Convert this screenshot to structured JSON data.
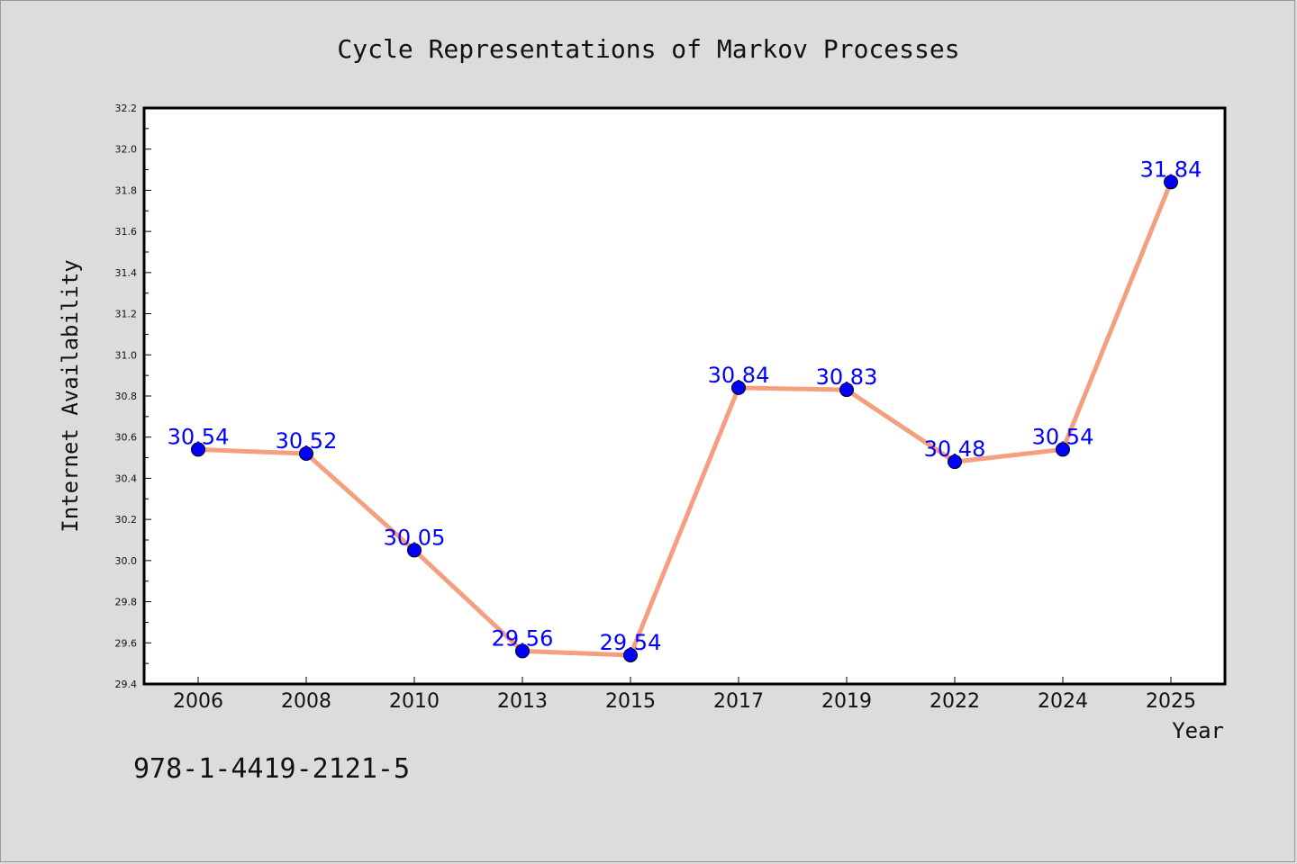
{
  "chart_data": {
    "type": "line",
    "title": "Cycle Representations of Markov Processes",
    "xlabel": "Year",
    "ylabel": "Internet Availability",
    "categories": [
      "2006",
      "2008",
      "2010",
      "2013",
      "2015",
      "2017",
      "2019",
      "2022",
      "2024",
      "2025"
    ],
    "series": [
      {
        "values": [
          30.54,
          30.52,
          30.05,
          29.56,
          29.54,
          30.84,
          30.83,
          30.48,
          30.54,
          31.84
        ],
        "line_color": "#f4a080",
        "marker_color": "#0000ff"
      }
    ],
    "data_labels": [
      "30.54",
      "30.52",
      "30.05",
      "29.56",
      "29.54",
      "30.84",
      "30.83",
      "30.48",
      "30.54",
      "31.84"
    ],
    "ylim": [
      29.4,
      32.2
    ],
    "yticks": [
      "29.4",
      "29.6",
      "29.8",
      "30.0",
      "30.2",
      "30.4",
      "30.6",
      "30.8",
      "31.0",
      "31.2",
      "31.4",
      "31.6",
      "31.8",
      "32.0",
      "32.2"
    ],
    "grid": false,
    "annotation": "978-1-4419-2121-5",
    "colors": {
      "background": "#dcdcdc",
      "plot_background": "#ffffff",
      "label_color": "#0000ff"
    }
  }
}
